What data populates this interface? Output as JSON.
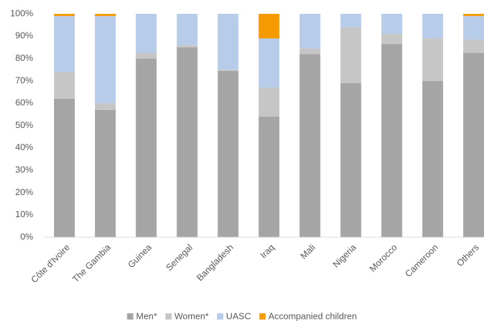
{
  "chart_data": {
    "type": "bar",
    "stacked": true,
    "categories": [
      "Côte d'Ivoire",
      "The Gambia",
      "Guinea",
      "Senegal",
      "Bangladesh",
      "Iraq",
      "Mali",
      "Nigeria",
      "Morocco",
      "Cameroon",
      "Others"
    ],
    "series": [
      {
        "name": "Men*",
        "color": "#a5a5a5",
        "values": [
          62,
          57,
          80,
          85,
          74.5,
          54,
          82,
          69,
          86.5,
          70,
          82.5
        ]
      },
      {
        "name": "Women*",
        "color": "#c6c6c6",
        "values": [
          12,
          3,
          2.5,
          1,
          0.5,
          13,
          2.5,
          25,
          4.5,
          19,
          6
        ]
      },
      {
        "name": "UASC",
        "color": "#b7cce9",
        "values": [
          25,
          39,
          17.5,
          14,
          25,
          22,
          15.5,
          6,
          9,
          11,
          10.5
        ]
      },
      {
        "name": "Accompanied children",
        "color": "#f59a00",
        "values": [
          1,
          1,
          0,
          0,
          0,
          11,
          0,
          0,
          0,
          0,
          1
        ]
      }
    ],
    "ylim": [
      0,
      100
    ],
    "yticks": [
      {
        "value": 0,
        "label": "0%"
      },
      {
        "value": 10,
        "label": "10%"
      },
      {
        "value": 20,
        "label": "20%"
      },
      {
        "value": 30,
        "label": "30%"
      },
      {
        "value": 40,
        "label": "40%"
      },
      {
        "value": 50,
        "label": "50%"
      },
      {
        "value": 60,
        "label": "60%"
      },
      {
        "value": 70,
        "label": "70%"
      },
      {
        "value": 80,
        "label": "80%"
      },
      {
        "value": 90,
        "label": "90%"
      },
      {
        "value": 100,
        "label": "100%"
      }
    ],
    "grid": false,
    "legend": "bottom"
  }
}
